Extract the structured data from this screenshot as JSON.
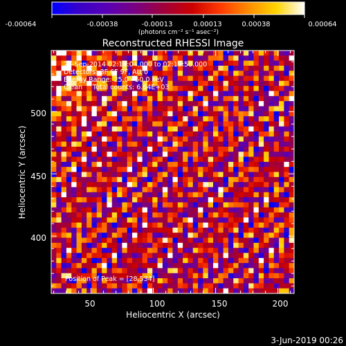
{
  "colorbar": {
    "tick_labels": [
      "-0.00064",
      "-0.00038",
      "-0.00013",
      "0.00013",
      "0.00038",
      "0.00064"
    ],
    "unit_label": "(photons cm⁻² s⁻¹ asec⁻²)",
    "colormap": [
      "#0000ff",
      "#3a00c8",
      "#5a00b4",
      "#7a0080",
      "#a0003a",
      "#cc0000",
      "#ff3a00",
      "#ff8c00",
      "#ffd400",
      "#ffffff"
    ]
  },
  "chart_data": {
    "type": "heatmap",
    "title": "Reconstructed RHESSI Image",
    "xlabel": "Heliocentric X (arcsec)",
    "ylabel": "Heliocentric Y (arcsec)",
    "xlim": [
      18,
      213
    ],
    "ylim": [
      354,
      549
    ],
    "x_ticks": [
      "50",
      "100",
      "150",
      "200"
    ],
    "y_ticks": [
      "400",
      "450",
      "500"
    ],
    "annotations": [
      "25-Sep-2014 02:13:04.000 to 02:19:58.000",
      "Detectors: 3F 6F 9F, Att 0",
      "Energy Range: 25.0 - 50.0 keV",
      "Clean     Total counts: 6.64E+03"
    ],
    "peak_label": "Position of Peak = [28,534]",
    "peak": [
      28,
      534
    ],
    "grid": false,
    "value_range": [
      -0.00064,
      0.00064
    ]
  },
  "footer": {
    "date": "3-Jun-2019 00:26"
  }
}
